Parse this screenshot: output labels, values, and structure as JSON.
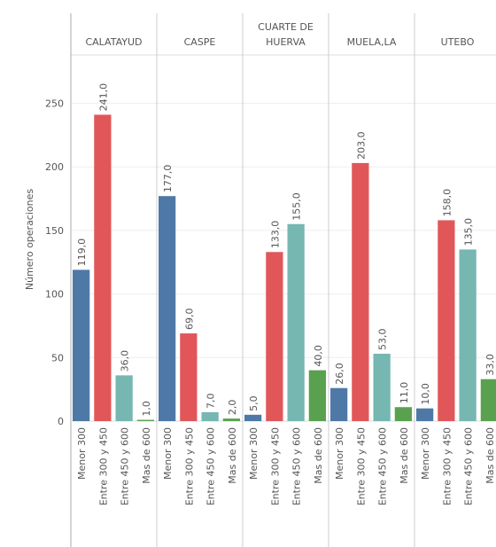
{
  "chart_data": {
    "type": "bar",
    "y_label": "Número operaciones",
    "categories": [
      "Menor 300",
      "Entre 300 y 450",
      "Entre 450 y 600",
      "Mas de 600"
    ],
    "colors": [
      "#4e79a7",
      "#e15759",
      "#76b7b2",
      "#59a14f"
    ],
    "ylim": [
      0,
      288
    ],
    "yticks": [
      0,
      50,
      100,
      150,
      200,
      250
    ],
    "grid": true,
    "panels": [
      {
        "name": "CALATAYUD",
        "values": [
          119,
          241,
          36,
          1
        ],
        "value_labels": [
          "119,0",
          "241,0",
          "36,0",
          "1,0"
        ]
      },
      {
        "name": "CASPE",
        "values": [
          177,
          69,
          7,
          2
        ],
        "value_labels": [
          "177,0",
          "69,0",
          "7,0",
          "2,0"
        ]
      },
      {
        "name": "CUARTE DE HUERVA",
        "values": [
          5,
          133,
          155,
          40
        ],
        "value_labels": [
          "5,0",
          "133,0",
          "155,0",
          "40,0"
        ]
      },
      {
        "name": "MUELA,LA",
        "values": [
          26,
          203,
          53,
          11
        ],
        "value_labels": [
          "26,0",
          "203,0",
          "53,0",
          "11,0"
        ]
      },
      {
        "name": "UTEBO",
        "values": [
          10,
          158,
          135,
          33
        ],
        "value_labels": [
          "10,0",
          "158,0",
          "135,0",
          "33,0"
        ]
      }
    ]
  }
}
